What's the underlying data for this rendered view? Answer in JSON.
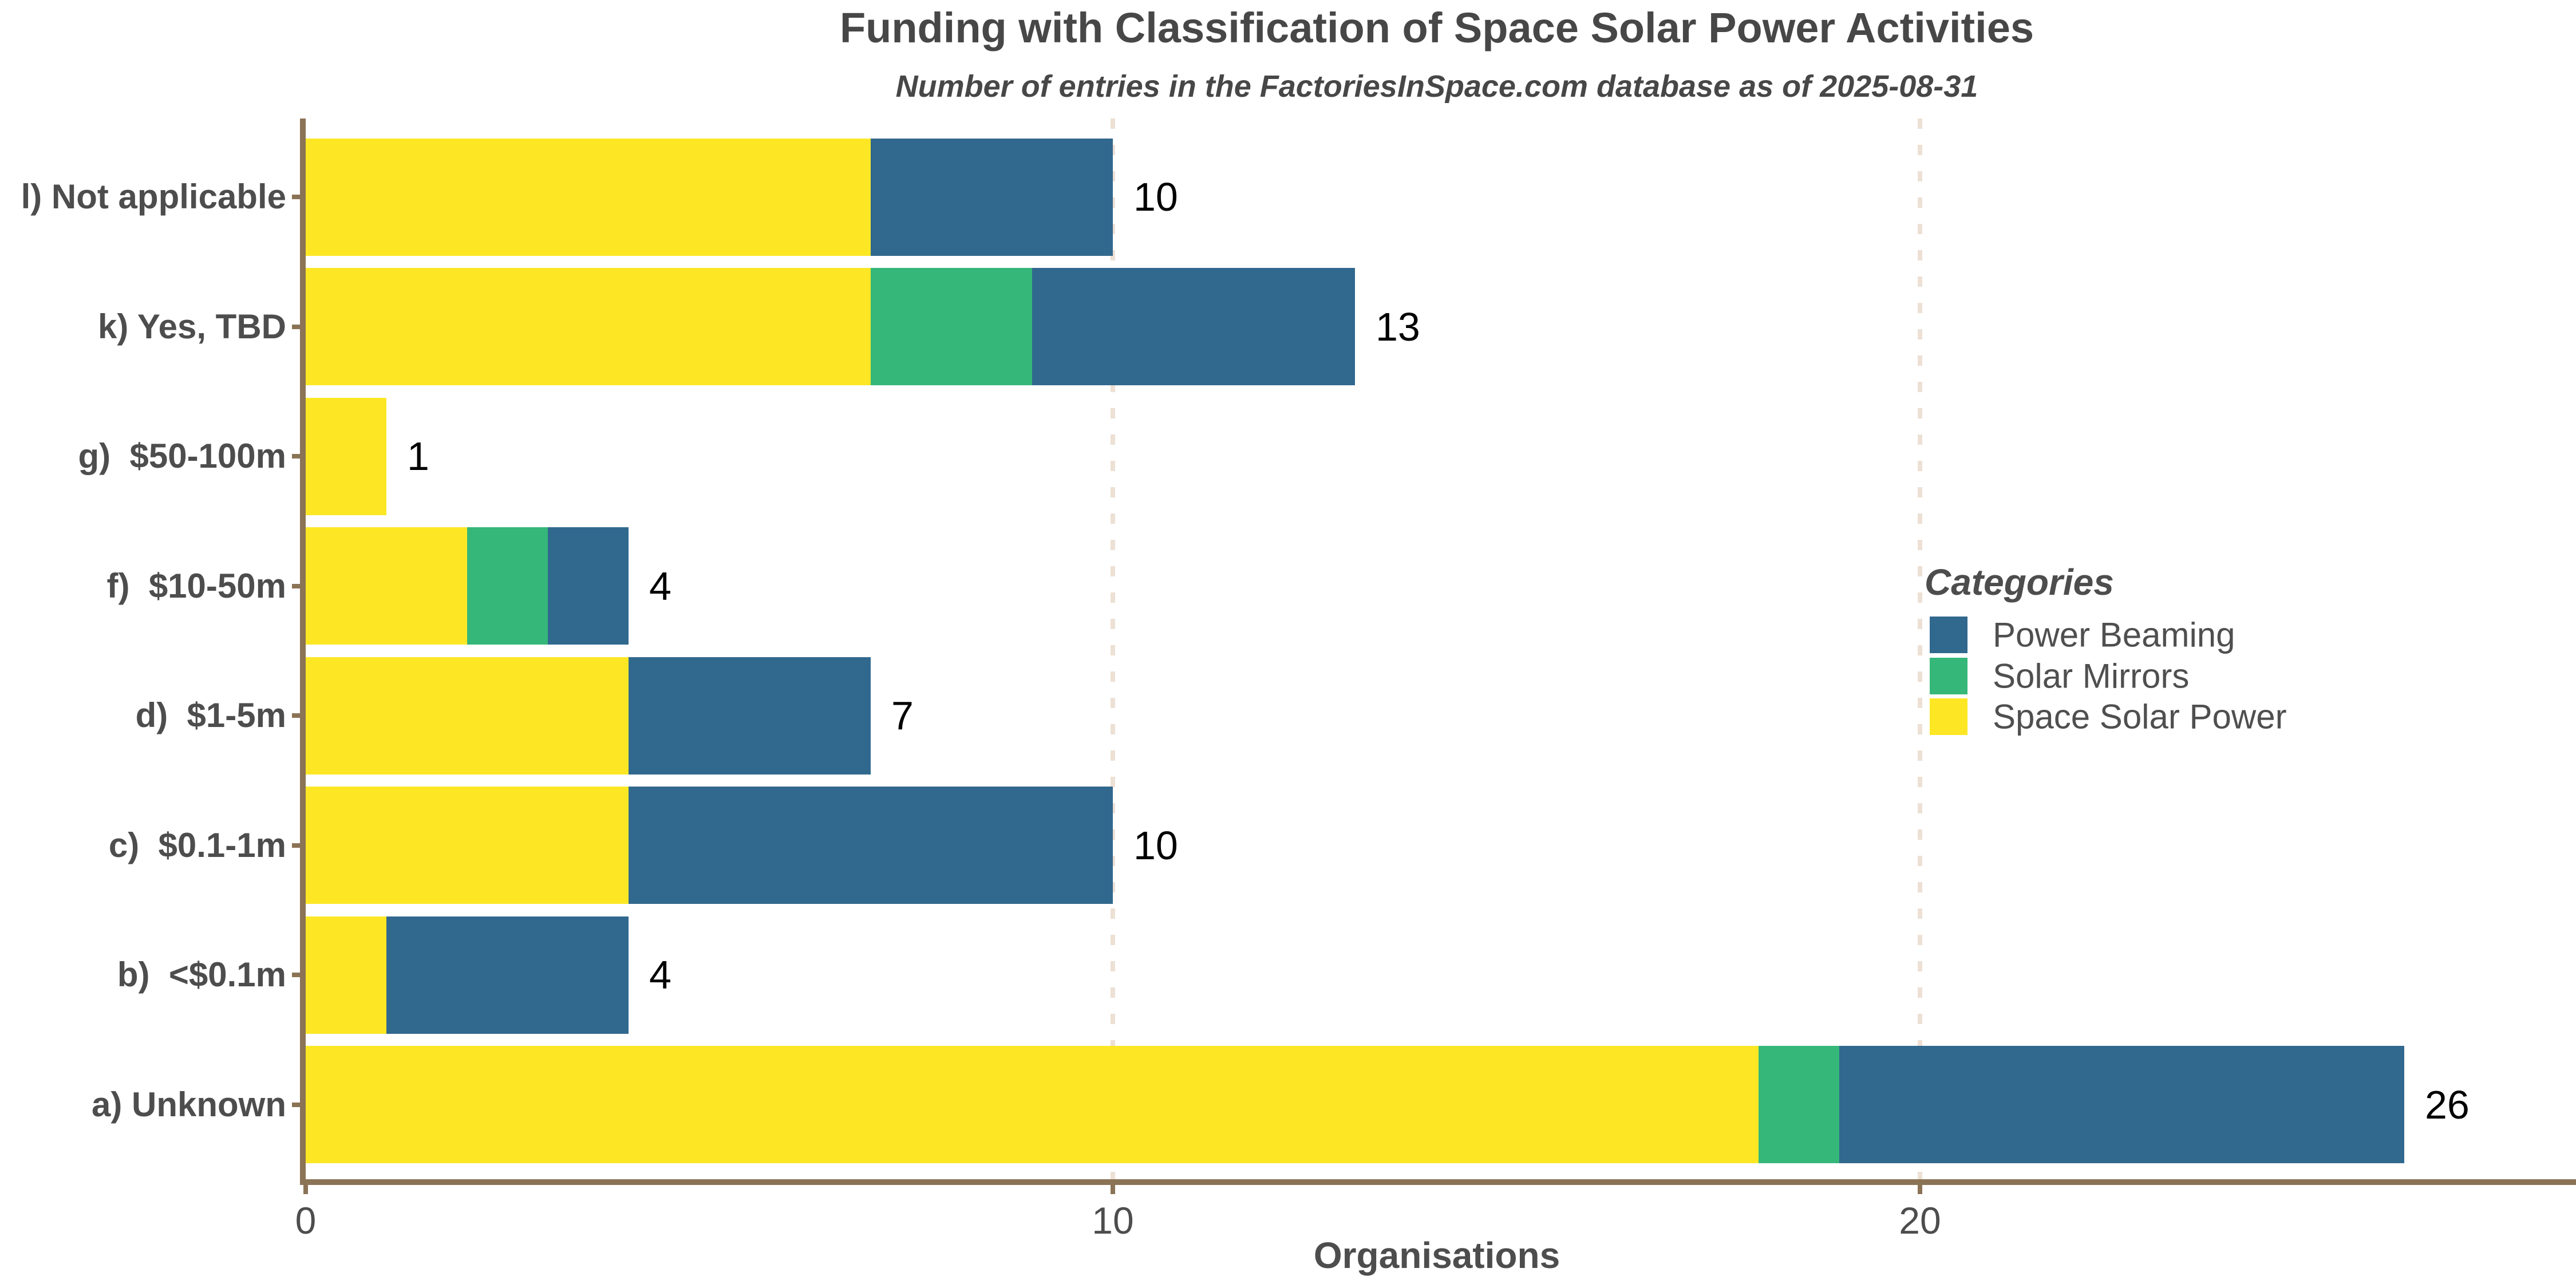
{
  "chart_data": {
    "type": "bar",
    "orientation": "horizontal",
    "stacked": true,
    "title": "Funding with Classification of Space Solar Power Activities",
    "subtitle": "Number of entries in the FactoriesInSpace.com database as of 2025-08-31",
    "xlabel": "Organisations",
    "x_ticks": [
      0,
      10,
      20
    ],
    "xlim": [
      0,
      28
    ],
    "grid": {
      "vertical_dashed_at": [
        10,
        20
      ],
      "color": "#EDE0D4"
    },
    "legend": {
      "title": "Categories",
      "position": "center-right",
      "entries": [
        {
          "label": "Power Beaming",
          "color": "#31688E"
        },
        {
          "label": "Solar Mirrors",
          "color": "#35B779"
        },
        {
          "label": "Space Solar Power",
          "color": "#FDE725"
        }
      ]
    },
    "stack_order_from_axis": [
      "Space Solar Power",
      "Solar Mirrors",
      "Power Beaming"
    ],
    "colors": {
      "Space Solar Power": "#FDE725",
      "Solar Mirrors": "#35B779",
      "Power Beaming": "#31688E"
    },
    "rows": [
      {
        "label": "l) Not applicable",
        "space_solar_power": 7,
        "solar_mirrors": 0,
        "power_beaming": 3,
        "total": 10
      },
      {
        "label": "k) Yes, TBD",
        "space_solar_power": 7,
        "solar_mirrors": 2,
        "power_beaming": 4,
        "total": 13
      },
      {
        "label": "g)  $50-100m",
        "space_solar_power": 1,
        "solar_mirrors": 0,
        "power_beaming": 0,
        "total": 1
      },
      {
        "label": "f)  $10-50m",
        "space_solar_power": 2,
        "solar_mirrors": 1,
        "power_beaming": 1,
        "total": 4
      },
      {
        "label": "d)  $1-5m",
        "space_solar_power": 4,
        "solar_mirrors": 0,
        "power_beaming": 3,
        "total": 7
      },
      {
        "label": "c)  $0.1-1m",
        "space_solar_power": 4,
        "solar_mirrors": 0,
        "power_beaming": 6,
        "total": 10
      },
      {
        "label": "b)  <$0.1m",
        "space_solar_power": 1,
        "solar_mirrors": 0,
        "power_beaming": 3,
        "total": 4
      },
      {
        "label": "a) Unknown",
        "space_solar_power": 18,
        "solar_mirrors": 1,
        "power_beaming": 7,
        "total": 26
      }
    ],
    "axis_color": "#8B7355",
    "text_color": "#4D4D4D",
    "value_label_color": "#000000",
    "background": "#FFFFFF"
  }
}
